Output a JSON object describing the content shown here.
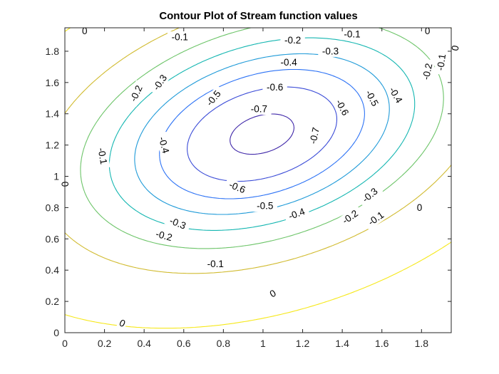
{
  "chart_data": {
    "type": "contour",
    "title": "Contour Plot of Stream function values",
    "xlabel": "",
    "ylabel": "",
    "xlim": [
      0,
      1.95
    ],
    "ylim": [
      0,
      1.95
    ],
    "xticks": [
      "0",
      "0.2",
      "0.4",
      "0.6",
      "0.8",
      "1",
      "1.2",
      "1.4",
      "1.6",
      "1.8"
    ],
    "yticks": [
      "0",
      "0.2",
      "0.4",
      "0.6",
      "0.8",
      "1",
      "1.2",
      "1.4",
      "1.6",
      "1.8"
    ],
    "grid": false,
    "colormap": "parula",
    "levels": [
      {
        "value": -0.7,
        "color": "#3e26a8"
      },
      {
        "value": -0.6,
        "color": "#3a4bd7"
      },
      {
        "value": -0.5,
        "color": "#2c72f5"
      },
      {
        "value": -0.4,
        "color": "#1e9ad8"
      },
      {
        "value": -0.3,
        "color": "#14b6b1"
      },
      {
        "value": -0.2,
        "color": "#6cc468"
      },
      {
        "value": -0.1,
        "color": "#d1bb30"
      },
      {
        "value": 0,
        "color": "#f6e81a"
      }
    ],
    "contour_labels": [
      {
        "text": "-0.7",
        "x": 0.98,
        "y": 1.43,
        "angle": 0
      },
      {
        "text": "-0.7",
        "x": 1.26,
        "y": 1.26,
        "angle": -78
      },
      {
        "text": "-0.6",
        "x": 1.06,
        "y": 1.57,
        "angle": 0
      },
      {
        "text": "-0.6",
        "x": 1.4,
        "y": 1.44,
        "angle": 62
      },
      {
        "text": "-0.6",
        "x": 0.87,
        "y": 0.93,
        "angle": 22
      },
      {
        "text": "-0.5",
        "x": 0.75,
        "y": 1.5,
        "angle": -50
      },
      {
        "text": "-0.5",
        "x": 1.55,
        "y": 1.5,
        "angle": 62
      },
      {
        "text": "-0.5",
        "x": 1.01,
        "y": 0.81,
        "angle": 0
      },
      {
        "text": "-0.4",
        "x": 1.13,
        "y": 1.73,
        "angle": 0
      },
      {
        "text": "-0.4",
        "x": 0.5,
        "y": 1.2,
        "angle": 75
      },
      {
        "text": "-0.4",
        "x": 1.17,
        "y": 0.76,
        "angle": -20
      },
      {
        "text": "-0.4",
        "x": 1.67,
        "y": 1.52,
        "angle": 60
      },
      {
        "text": "-0.3",
        "x": 0.48,
        "y": 1.6,
        "angle": -55
      },
      {
        "text": "-0.3",
        "x": 1.34,
        "y": 1.8,
        "angle": 0
      },
      {
        "text": "-0.3",
        "x": 1.54,
        "y": 0.88,
        "angle": -40
      },
      {
        "text": "-0.3",
        "x": 0.57,
        "y": 0.7,
        "angle": 22
      },
      {
        "text": "-0.2",
        "x": 0.36,
        "y": 1.53,
        "angle": -65
      },
      {
        "text": "-0.2",
        "x": 1.15,
        "y": 1.87,
        "angle": 0
      },
      {
        "text": "-0.2",
        "x": 1.83,
        "y": 1.67,
        "angle": -78
      },
      {
        "text": "-0.2",
        "x": 1.44,
        "y": 0.74,
        "angle": -35
      },
      {
        "text": "-0.2",
        "x": 0.5,
        "y": 0.62,
        "angle": 15
      },
      {
        "text": "-0.1",
        "x": 0.58,
        "y": 1.89,
        "angle": 0
      },
      {
        "text": "-0.1",
        "x": 1.45,
        "y": 1.91,
        "angle": 0
      },
      {
        "text": "-0.1",
        "x": 1.9,
        "y": 1.73,
        "angle": -82
      },
      {
        "text": "-0.1",
        "x": 0.19,
        "y": 1.13,
        "angle": 80
      },
      {
        "text": "-0.1",
        "x": 1.57,
        "y": 0.73,
        "angle": -35
      },
      {
        "text": "-0.1",
        "x": 0.76,
        "y": 0.44,
        "angle": 0
      },
      {
        "text": "0",
        "x": 0.1,
        "y": 1.93,
        "angle": 0
      },
      {
        "text": "0",
        "x": 1.83,
        "y": 1.93,
        "angle": 0
      },
      {
        "text": "0",
        "x": 1.97,
        "y": 1.82,
        "angle": -80
      },
      {
        "text": "0",
        "x": 0.0,
        "y": 0.95,
        "angle": 85
      },
      {
        "text": "0",
        "x": 1.79,
        "y": 0.8,
        "angle": 0
      },
      {
        "text": "0",
        "x": 1.05,
        "y": 0.25,
        "angle": -30
      },
      {
        "text": "0",
        "x": 0.29,
        "y": 0.06,
        "angle": 25
      }
    ]
  }
}
